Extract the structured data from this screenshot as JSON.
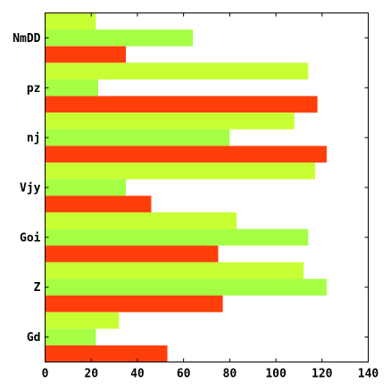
{
  "chart_data": {
    "type": "bar",
    "orientation": "horizontal",
    "categories": [
      "NmDD",
      "pz",
      "nj",
      "Vjy",
      "Goi",
      "Z",
      "Gd"
    ],
    "series": [
      {
        "color": "#c8ff33",
        "values": [
          22,
          114,
          108,
          117,
          83,
          112,
          32
        ]
      },
      {
        "color": "#a5ff44",
        "values": [
          64,
          23,
          80,
          35,
          114,
          122,
          22
        ]
      },
      {
        "color": "#ff3f0a",
        "values": [
          35,
          118,
          122,
          46,
          75,
          77,
          53
        ]
      }
    ],
    "title": "",
    "xlabel": "",
    "ylabel": "",
    "xlim": [
      0,
      140
    ],
    "xticks": [
      0,
      20,
      40,
      60,
      80,
      100,
      120,
      140
    ],
    "grid": false,
    "legend": "none"
  }
}
